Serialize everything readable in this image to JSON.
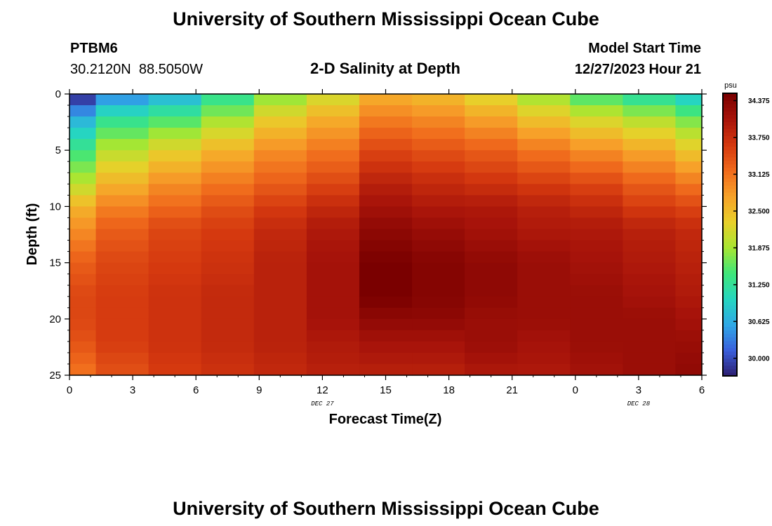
{
  "page": {
    "title_top": "University of Southern Mississippi Ocean Cube",
    "title_bottom": "University of Southern Mississippi Ocean Cube",
    "station_id": "PTBM6",
    "station_coords": "30.2120N  88.5050W",
    "plot_title": "2-D Salinity at Depth",
    "model_start_label": "Model Start Time",
    "model_start_value": "12/27/2023 Hour 21"
  },
  "chart_data": {
    "type": "heatmap",
    "title": "2-D Salinity at Depth",
    "xlabel": "Forecast Time(Z)",
    "ylabel": "Depth (ft)",
    "x_ticks": [
      "0",
      "3",
      "6",
      "9",
      "12",
      "15",
      "18",
      "21",
      "0",
      "3",
      "6"
    ],
    "x_tick_hours": [
      0,
      3,
      6,
      9,
      12,
      15,
      18,
      21,
      24,
      27,
      30
    ],
    "x_range": [
      0,
      30
    ],
    "date_labels": [
      {
        "text": "DEC 27",
        "hour": 12
      },
      {
        "text": "DEC 28",
        "hour": 27
      }
    ],
    "y_ticks": [
      "0",
      "5",
      "10",
      "15",
      "20",
      "25"
    ],
    "y_tick_values": [
      0,
      5,
      10,
      15,
      20,
      25
    ],
    "y_range": [
      0,
      25
    ],
    "colorbar": {
      "unit": "psu",
      "min": 29.7,
      "max": 34.5,
      "ticks": [
        "34.375",
        "33.750",
        "33.125",
        "32.500",
        "31.875",
        "31.250",
        "30.625",
        "30.000"
      ],
      "tick_values": [
        34.375,
        33.75,
        33.125,
        32.5,
        31.875,
        31.25,
        30.625,
        30.0
      ],
      "colors": [
        "#2d1e6e",
        "#3a5fdc",
        "#2fa8e6",
        "#26d6c0",
        "#3ee67a",
        "#a8e632",
        "#e8d02a",
        "#f7a129",
        "#f06a1c",
        "#d4380f",
        "#a8140a",
        "#7a0000"
      ]
    },
    "column_hours": [
      0,
      2.5,
      5,
      7.5,
      10,
      12.5,
      15,
      17.5,
      20,
      22.5,
      25,
      27.5,
      30
    ],
    "depth_profiles_note": "salinity (psu) per column, sampled at depths 0,2,5,8,10,12,15,18,20,22,25 ft",
    "sample_depths": [
      0,
      2,
      5,
      8,
      10,
      12,
      15,
      18,
      20,
      22,
      25
    ],
    "columns": [
      [
        29.7,
        30.6,
        31.4,
        32.0,
        32.6,
        32.9,
        33.3,
        33.5,
        33.5,
        33.4,
        33.1
      ],
      [
        30.3,
        31.2,
        32.0,
        32.6,
        33.0,
        33.3,
        33.5,
        33.6,
        33.6,
        33.6,
        33.4
      ],
      [
        30.6,
        31.4,
        32.3,
        32.9,
        33.2,
        33.5,
        33.6,
        33.7,
        33.7,
        33.7,
        33.6
      ],
      [
        31.2,
        31.8,
        32.6,
        33.1,
        33.4,
        33.6,
        33.7,
        33.8,
        33.8,
        33.8,
        33.7
      ],
      [
        31.7,
        32.3,
        32.9,
        33.3,
        33.6,
        33.8,
        33.9,
        33.9,
        33.9,
        33.9,
        33.8
      ],
      [
        32.1,
        32.6,
        33.1,
        33.5,
        33.8,
        34.0,
        34.1,
        34.1,
        34.1,
        34.0,
        33.9
      ],
      [
        32.6,
        33.0,
        33.5,
        33.9,
        34.1,
        34.3,
        34.5,
        34.5,
        34.3,
        34.1,
        33.9
      ],
      [
        32.5,
        32.9,
        33.4,
        33.8,
        34.0,
        34.2,
        34.4,
        34.4,
        34.3,
        34.1,
        33.9
      ],
      [
        32.2,
        32.7,
        33.3,
        33.7,
        34.0,
        34.1,
        34.3,
        34.3,
        34.2,
        34.2,
        34.0
      ],
      [
        31.8,
        32.4,
        33.1,
        33.6,
        33.9,
        34.0,
        34.2,
        34.2,
        34.2,
        34.1,
        34.0
      ],
      [
        31.4,
        32.1,
        32.9,
        33.5,
        33.8,
        34.0,
        34.1,
        34.2,
        34.2,
        34.2,
        34.1
      ],
      [
        31.1,
        31.9,
        32.7,
        33.3,
        33.6,
        33.9,
        34.0,
        34.1,
        34.2,
        34.2,
        34.2
      ],
      [
        30.8,
        31.6,
        32.4,
        33.1,
        33.5,
        33.8,
        33.9,
        34.0,
        34.1,
        34.2,
        34.3
      ]
    ]
  }
}
